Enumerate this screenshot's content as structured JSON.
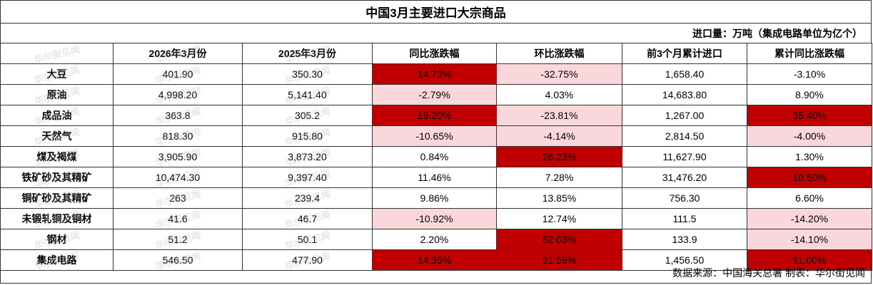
{
  "title": "中国3月主要进口大宗商品",
  "unit_note": "进口量：万吨（集成电路单位为亿个）",
  "watermark": "华尔街见闻",
  "colors": {
    "strong": "#c00000",
    "light": "#f9d7da",
    "none": "#ffffff"
  },
  "headers": [
    "",
    "2026年3月份",
    "2025年3月份",
    "同比涨跌幅",
    "环比涨跌幅",
    "前3个月累计进口",
    "累计同比涨跌幅"
  ],
  "rows": [
    {
      "name": "大豆",
      "values": [
        "401.90",
        "350.30",
        "14.73%",
        "-32.75%",
        "1,658.40",
        "-3.10%"
      ],
      "hl": [
        "none",
        "none",
        "strong",
        "light",
        "none",
        "none"
      ]
    },
    {
      "name": "原油",
      "values": [
        "4,998.20",
        "5,141.40",
        "-2.79%",
        "4.03%",
        "14,683.80",
        "8.90%"
      ],
      "hl": [
        "none",
        "none",
        "light",
        "none",
        "none",
        "none"
      ]
    },
    {
      "name": "成品油",
      "values": [
        "363.8",
        "305.2",
        "19.20%",
        "-23.81%",
        "1,267.00",
        "35.40%"
      ],
      "hl": [
        "none",
        "none",
        "strong",
        "light",
        "none",
        "strong"
      ]
    },
    {
      "name": "天然气",
      "values": [
        "818.30",
        "915.80",
        "-10.65%",
        "-4.14%",
        "2,814.50",
        "-4.00%"
      ],
      "hl": [
        "none",
        "none",
        "light",
        "light",
        "none",
        "light"
      ]
    },
    {
      "name": "煤及褐煤",
      "values": [
        "3,905.90",
        "3,873.20",
        "0.84%",
        "26.23%",
        "11,627.90",
        "1.30%"
      ],
      "hl": [
        "none",
        "none",
        "none",
        "strong",
        "none",
        "none"
      ]
    },
    {
      "name": "铁矿砂及其精矿",
      "values": [
        "10,474.30",
        "9,397.40",
        "11.46%",
        "7.28%",
        "31,476.20",
        "10.50%"
      ],
      "hl": [
        "none",
        "none",
        "none",
        "none",
        "none",
        "strong"
      ]
    },
    {
      "name": "铜矿砂及其精矿",
      "values": [
        "263",
        "239.4",
        "9.86%",
        "13.85%",
        "756.30",
        "6.60%"
      ],
      "hl": [
        "none",
        "none",
        "none",
        "none",
        "none",
        "none"
      ]
    },
    {
      "name": "未锻轧铜及铜材",
      "values": [
        "41.6",
        "46.7",
        "-10.92%",
        "12.74%",
        "111.5",
        "-14.20%"
      ],
      "hl": [
        "none",
        "none",
        "light",
        "none",
        "none",
        "light"
      ]
    },
    {
      "name": "钢材",
      "values": [
        "51.2",
        "50.1",
        "2.20%",
        "62.03%",
        "133.9",
        "-14.10%"
      ],
      "hl": [
        "none",
        "none",
        "none",
        "strong",
        "none",
        "light"
      ]
    },
    {
      "name": "集成电路",
      "values": [
        "546.50",
        "477.90",
        "14.35%",
        "31.59%",
        "1,456.50",
        "11.00%"
      ],
      "hl": [
        "none",
        "none",
        "strong",
        "strong",
        "none",
        "strong"
      ]
    }
  ],
  "footer": "数据来源：中国海关总署 制表：华尔街见闻"
}
